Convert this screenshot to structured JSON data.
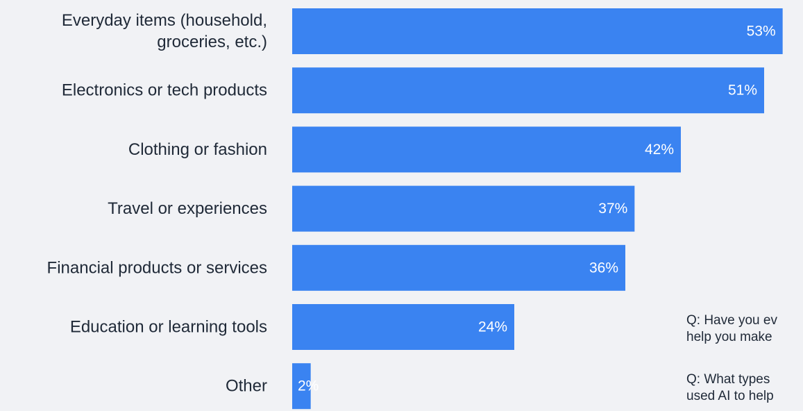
{
  "chart_data": {
    "type": "bar",
    "orientation": "horizontal",
    "categories": [
      [
        "Everyday items (household,",
        "groceries, etc.)"
      ],
      [
        "Electronics or tech products"
      ],
      [
        "Clothing or fashion"
      ],
      [
        "Travel or experiences"
      ],
      [
        "Financial products or services"
      ],
      [
        "Education or learning tools"
      ],
      [
        "Other"
      ]
    ],
    "values": [
      53,
      51,
      42,
      37,
      36,
      24,
      2
    ],
    "value_labels": [
      "53%",
      "51%",
      "42%",
      "37%",
      "36%",
      "24%",
      "2%"
    ],
    "unit": "%",
    "xlim": [
      0,
      57
    ],
    "bar_color": "#3a83f1",
    "grid": false,
    "legend": "none"
  },
  "notes": [
    [
      "Q: Have you ev",
      "help you make"
    ],
    [
      "Q: What types",
      "used AI to help"
    ]
  ]
}
